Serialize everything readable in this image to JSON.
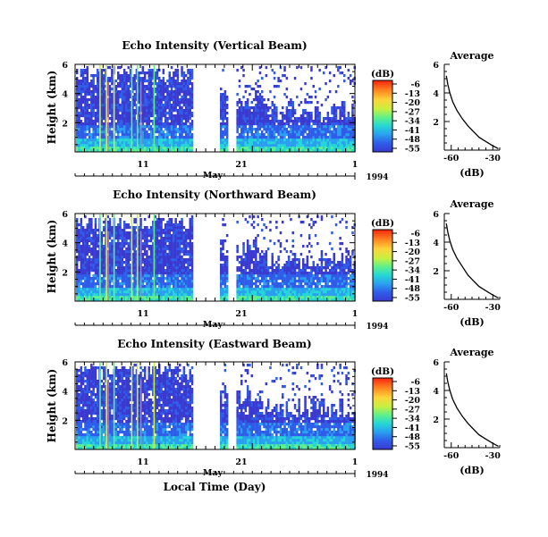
{
  "figure": {
    "xlabel": "Local Time (Day)"
  },
  "colorbar": {
    "unit": "(dB)",
    "ticks": [
      "-6",
      "-13",
      "-20",
      "-27",
      "-34",
      "-41",
      "-48",
      "-55"
    ],
    "colors": [
      "#f5230f",
      "#ff7f1f",
      "#ffd43a",
      "#c8f040",
      "#5ef08a",
      "#24d6d6",
      "#2a9ef0",
      "#2f5ce8",
      "#3a3ad0"
    ]
  },
  "panels": [
    {
      "title": "Echo Intensity (Vertical Beam)",
      "ylabel": "Height (km)",
      "x_month": "May",
      "year": "1994",
      "avg_title": "Average",
      "avg_xlabel": "(dB)"
    },
    {
      "title": "Echo Intensity (Northward Beam)",
      "ylabel": "Height (km)",
      "x_month": "May",
      "year": "1994",
      "avg_title": "Average",
      "avg_xlabel": "(dB)"
    },
    {
      "title": "Echo Intensity (Eastward Beam)",
      "ylabel": "Height (km)",
      "x_month": "May",
      "year": "1994",
      "avg_title": "Average",
      "avg_xlabel": "(dB)"
    }
  ],
  "chart_data": [
    {
      "type": "heatmap",
      "title": "Echo Intensity (Vertical Beam)",
      "ylabel": "Height (km)",
      "xlabel": "",
      "x_tick_labels": [
        "11",
        "21",
        "1"
      ],
      "x_month_label": "May",
      "year_label": "1994",
      "x_range_day": [
        2,
        31
      ],
      "ylim_km": [
        0,
        6
      ],
      "y_tick_labels": [
        "6",
        "4",
        "2"
      ],
      "colorbar_unit": "(dB)",
      "colorbar_ticks": [
        -6,
        -13,
        -20,
        -27,
        -34,
        -41,
        -48,
        -55
      ],
      "data_gap_days": [
        [
          14.5,
          17.5
        ],
        [
          18.2,
          19.1
        ]
      ]
    },
    {
      "type": "line",
      "title": "Average",
      "xlabel": "(dB)",
      "x_tick_labels": [
        "-60",
        "-30"
      ],
      "y_tick_labels": [
        "6",
        "4",
        "2"
      ],
      "xlim": [
        -65,
        -25
      ],
      "ylim": [
        0,
        6
      ],
      "series": [
        {
          "x": [
            -63.5,
            -62.5,
            -61,
            -59,
            -56,
            -52,
            -48,
            -44,
            -40,
            -35,
            -30,
            -26
          ],
          "y": [
            5.2,
            4.6,
            4.0,
            3.4,
            2.8,
            2.2,
            1.7,
            1.3,
            0.9,
            0.6,
            0.3,
            0.1
          ]
        }
      ]
    },
    {
      "type": "heatmap",
      "title": "Echo Intensity (Northward Beam)",
      "ylabel": "Height (km)",
      "xlabel": "",
      "x_tick_labels": [
        "11",
        "21",
        "1"
      ],
      "x_month_label": "May",
      "year_label": "1994",
      "x_range_day": [
        2,
        31
      ],
      "ylim_km": [
        0,
        6
      ],
      "y_tick_labels": [
        "6",
        "4",
        "2"
      ],
      "colorbar_unit": "(dB)",
      "colorbar_ticks": [
        -6,
        -13,
        -20,
        -27,
        -34,
        -41,
        -48,
        -55
      ],
      "data_gap_days": [
        [
          14.5,
          17.5
        ],
        [
          18.2,
          19.1
        ]
      ]
    },
    {
      "type": "line",
      "title": "Average",
      "xlabel": "(dB)",
      "x_tick_labels": [
        "-60",
        "-30"
      ],
      "y_tick_labels": [
        "6",
        "4",
        "2"
      ],
      "xlim": [
        -65,
        -25
      ],
      "ylim": [
        0,
        6
      ],
      "series": [
        {
          "x": [
            -63.5,
            -62.5,
            -61,
            -59,
            -56,
            -52,
            -48,
            -44,
            -40,
            -35,
            -30,
            -26
          ],
          "y": [
            5.3,
            4.7,
            4.1,
            3.5,
            2.9,
            2.3,
            1.7,
            1.3,
            0.9,
            0.6,
            0.3,
            0.1
          ]
        }
      ]
    },
    {
      "type": "heatmap",
      "title": "Echo Intensity (Eastward Beam)",
      "ylabel": "Height (km)",
      "xlabel": "Local Time (Day)",
      "x_tick_labels": [
        "11",
        "21",
        "1"
      ],
      "x_month_label": "May",
      "year_label": "1994",
      "x_range_day": [
        2,
        31
      ],
      "ylim_km": [
        0,
        6
      ],
      "y_tick_labels": [
        "6",
        "4",
        "2"
      ],
      "colorbar_unit": "(dB)",
      "colorbar_ticks": [
        -6,
        -13,
        -20,
        -27,
        -34,
        -41,
        -48,
        -55
      ],
      "data_gap_days": [
        [
          14.5,
          17.5
        ],
        [
          18.2,
          19.1
        ]
      ]
    },
    {
      "type": "line",
      "title": "Average",
      "xlabel": "(dB)",
      "x_tick_labels": [
        "-60",
        "-30"
      ],
      "y_tick_labels": [
        "6",
        "4",
        "2"
      ],
      "xlim": [
        -65,
        -25
      ],
      "ylim": [
        0,
        6
      ],
      "series": [
        {
          "x": [
            -63.5,
            -62.5,
            -61,
            -59,
            -56,
            -52,
            -48,
            -44,
            -40,
            -35,
            -30,
            -26
          ],
          "y": [
            5.2,
            4.6,
            4.0,
            3.4,
            2.8,
            2.2,
            1.7,
            1.3,
            0.9,
            0.6,
            0.3,
            0.1
          ]
        }
      ]
    }
  ]
}
